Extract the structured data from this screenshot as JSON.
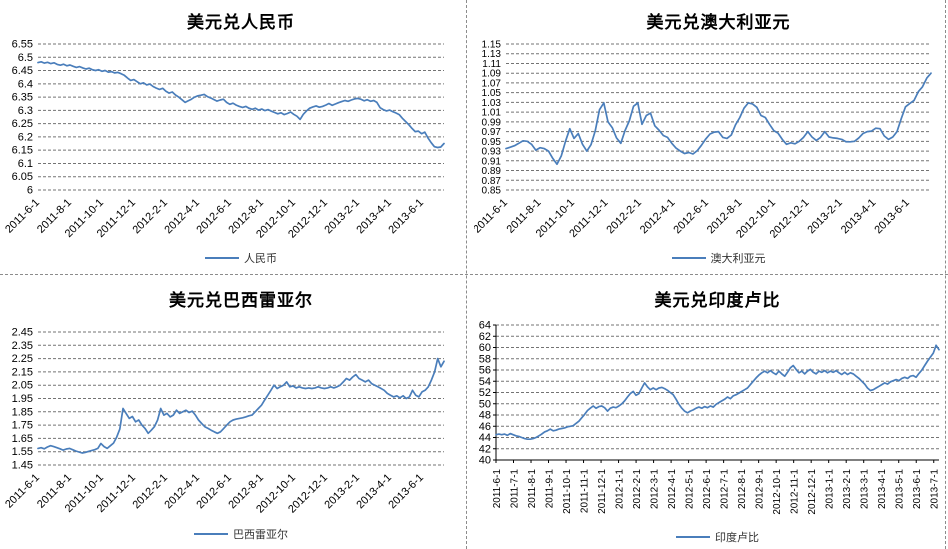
{
  "colors": {
    "series_line": "#4a7ebb",
    "grid": "#737373",
    "axis": "#000000",
    "divider": "#8c8c8c",
    "title_text": "#000000",
    "legend_text": "#333333"
  },
  "chart_data": [
    {
      "type": "line",
      "title": "美元兑人民币",
      "legend": "人民币",
      "ylim": [
        6,
        6.55
      ],
      "y_ticks": [
        "6.55",
        "6.5",
        "6.45",
        "6.4",
        "6.35",
        "6.3",
        "6.25",
        "6.2",
        "6.15",
        "6.1",
        "6.05",
        "6"
      ],
      "x_ticks": [
        "2011-6-1",
        "2011-8-1",
        "2011-10-1",
        "2011-12-1",
        "2012-2-1",
        "2012-4-1",
        "2012-6-1",
        "2012-8-1",
        "2012-10-1",
        "2012-12-1",
        "2013-2-1",
        "2013-4-1",
        "2013-6-1"
      ],
      "values": [
        6.48,
        6.483,
        6.478,
        6.481,
        6.476,
        6.479,
        6.473,
        6.47,
        6.474,
        6.468,
        6.471,
        6.466,
        6.462,
        6.465,
        6.46,
        6.456,
        6.459,
        6.453,
        6.45,
        6.453,
        6.447,
        6.45,
        6.444,
        6.446,
        6.441,
        6.443,
        6.438,
        6.432,
        6.422,
        6.413,
        6.416,
        6.408,
        6.4,
        6.404,
        6.396,
        6.399,
        6.39,
        6.384,
        6.379,
        6.383,
        6.372,
        6.365,
        6.369,
        6.358,
        6.35,
        6.34,
        6.33,
        6.336,
        6.342,
        6.35,
        6.355,
        6.357,
        6.36,
        6.352,
        6.347,
        6.341,
        6.335,
        6.339,
        6.342,
        6.33,
        6.323,
        6.327,
        6.32,
        6.315,
        6.311,
        6.315,
        6.308,
        6.304,
        6.308,
        6.301,
        6.305,
        6.299,
        6.303,
        6.297,
        6.292,
        6.287,
        6.291,
        6.284,
        6.288,
        6.294,
        6.285,
        6.278,
        6.266,
        6.285,
        6.298,
        6.308,
        6.313,
        6.317,
        6.312,
        6.315,
        6.32,
        6.326,
        6.319,
        6.324,
        6.329,
        6.333,
        6.337,
        6.334,
        6.339,
        6.343,
        6.345,
        6.342,
        6.336,
        6.34,
        6.334,
        6.337,
        6.33,
        6.31,
        6.303,
        6.298,
        6.301,
        6.295,
        6.29,
        6.284,
        6.27,
        6.258,
        6.246,
        6.232,
        6.22,
        6.222,
        6.212,
        6.218,
        6.196,
        6.178,
        6.163,
        6.16,
        6.162,
        6.175
      ]
    },
    {
      "type": "line",
      "title": "美元兑澳大利亚元",
      "legend": "澳大利亚元",
      "ylim": [
        0.85,
        1.15
      ],
      "y_ticks": [
        "1.15",
        "1.13",
        "1.11",
        "1.09",
        "1.07",
        "1.05",
        "1.03",
        "1.01",
        "0.99",
        "0.97",
        "0.95",
        "0.93",
        "0.91",
        "0.89",
        "0.87",
        "0.85"
      ],
      "x_ticks": [
        "2011-6-1",
        "2011-8-1",
        "2011-10-1",
        "2011-12-1",
        "2012-2-1",
        "2012-4-1",
        "2012-6-1",
        "2012-8-1",
        "2012-10-1",
        "2012-12-1",
        "2013-2-1",
        "2013-4-1",
        "2013-6-1"
      ],
      "values": [
        0.935,
        0.938,
        0.941,
        0.946,
        0.951,
        0.95,
        0.944,
        0.932,
        0.937,
        0.935,
        0.93,
        0.915,
        0.903,
        0.92,
        0.95,
        0.976,
        0.956,
        0.966,
        0.944,
        0.93,
        0.943,
        0.972,
        1.015,
        1.029,
        0.99,
        0.978,
        0.957,
        0.946,
        0.972,
        0.992,
        1.022,
        1.029,
        0.985,
        1.003,
        1.008,
        0.982,
        0.973,
        0.962,
        0.958,
        0.946,
        0.936,
        0.93,
        0.925,
        0.927,
        0.924,
        0.931,
        0.942,
        0.955,
        0.965,
        0.969,
        0.97,
        0.958,
        0.956,
        0.963,
        0.984,
        0.999,
        1.018,
        1.029,
        1.027,
        1.02,
        1.003,
        0.999,
        0.985,
        0.972,
        0.967,
        0.954,
        0.944,
        0.947,
        0.945,
        0.95,
        0.958,
        0.97,
        0.959,
        0.952,
        0.958,
        0.97,
        0.959,
        0.957,
        0.956,
        0.954,
        0.949,
        0.949,
        0.95,
        0.957,
        0.966,
        0.97,
        0.971,
        0.977,
        0.976,
        0.961,
        0.954,
        0.959,
        0.97,
        0.997,
        1.021,
        1.028,
        1.034,
        1.052,
        1.062,
        1.08,
        1.09
      ]
    },
    {
      "type": "line",
      "title": "美元兑巴西雷亚尔",
      "legend": "巴西雷亚尔",
      "ylim": [
        1.45,
        2.45
      ],
      "y_ticks": [
        "2.45",
        "2.35",
        "2.25",
        "2.15",
        "2.05",
        "1.95",
        "1.85",
        "1.75",
        "1.65",
        "1.55",
        "1.45"
      ],
      "x_ticks": [
        "2011-6-1",
        "2011-8-1",
        "2011-10-1",
        "2011-12-1",
        "2012-2-1",
        "2012-4-1",
        "2012-6-1",
        "2012-8-1",
        "2012-10-1",
        "2012-12-1",
        "2013-2-1",
        "2013-4-1",
        "2013-6-1"
      ],
      "values": [
        1.575,
        1.58,
        1.572,
        1.585,
        1.595,
        1.588,
        1.58,
        1.572,
        1.562,
        1.57,
        1.575,
        1.565,
        1.555,
        1.548,
        1.54,
        1.545,
        1.552,
        1.558,
        1.565,
        1.575,
        1.612,
        1.588,
        1.575,
        1.595,
        1.615,
        1.66,
        1.72,
        1.875,
        1.838,
        1.8,
        1.815,
        1.775,
        1.788,
        1.75,
        1.725,
        1.688,
        1.712,
        1.738,
        1.788,
        1.875,
        1.825,
        1.838,
        1.812,
        1.825,
        1.862,
        1.838,
        1.85,
        1.862,
        1.845,
        1.855,
        1.825,
        1.788,
        1.762,
        1.738,
        1.725,
        1.712,
        1.7,
        1.688,
        1.7,
        1.725,
        1.75,
        1.775,
        1.788,
        1.795,
        1.8,
        1.805,
        1.812,
        1.82,
        1.825,
        1.85,
        1.875,
        1.9,
        1.938,
        1.975,
        2.012,
        2.05,
        2.025,
        2.038,
        2.05,
        2.075,
        2.038,
        2.045,
        2.03,
        2.038,
        2.03,
        2.025,
        2.03,
        2.025,
        2.03,
        2.038,
        2.03,
        2.025,
        2.03,
        2.038,
        2.03,
        2.038,
        2.05,
        2.075,
        2.1,
        2.088,
        2.112,
        2.13,
        2.1,
        2.088,
        2.075,
        2.088,
        2.062,
        2.05,
        2.038,
        2.025,
        2.012,
        1.988,
        1.975,
        1.962,
        1.97,
        1.955,
        1.97,
        1.95,
        1.962,
        2.012,
        1.975,
        1.962,
        2.0,
        2.012,
        2.038,
        2.088,
        2.15,
        2.25,
        2.188,
        2.23
      ]
    },
    {
      "type": "line",
      "title": "美元兑印度卢比",
      "legend": "印度卢比",
      "ylim": [
        40,
        64
      ],
      "y_ticks": [
        "64",
        "62",
        "60",
        "58",
        "56",
        "54",
        "52",
        "50",
        "48",
        "46",
        "44",
        "42",
        "40"
      ],
      "x_ticks": [
        "2011-6-1",
        "2011-7-1",
        "2011-8-1",
        "2011-9-1",
        "2011-10-1",
        "2011-11-1",
        "2011-12-1",
        "2012-1-1",
        "2012-2-1",
        "2012-3-1",
        "2012-4-1",
        "2012-5-1",
        "2012-6-1",
        "2012-7-1",
        "2012-8-1",
        "2012-9-1",
        "2012-10-1",
        "2012-11-1",
        "2012-12-1",
        "2013-1-1",
        "2013-2-1",
        "2013-3-1",
        "2013-4-1",
        "2013-5-1",
        "2013-6-1",
        "2013-7-1"
      ],
      "values": [
        44.5,
        44.6,
        44.5,
        44.6,
        44.4,
        44.7,
        44.5,
        44.3,
        44.2,
        44.0,
        43.8,
        43.7,
        43.7,
        43.8,
        44.0,
        44.3,
        44.6,
        45.0,
        45.2,
        45.5,
        45.2,
        45.3,
        45.5,
        45.6,
        45.7,
        45.9,
        46.0,
        46.1,
        46.5,
        46.9,
        47.5,
        48.1,
        48.8,
        49.2,
        49.6,
        49.2,
        49.5,
        49.6,
        49.3,
        48.7,
        49.2,
        49.4,
        49.3,
        49.6,
        50.0,
        50.5,
        51.2,
        51.8,
        52.2,
        51.5,
        51.8,
        52.8,
        53.7,
        53.0,
        52.5,
        52.8,
        52.5,
        52.8,
        52.9,
        52.7,
        52.4,
        52.0,
        51.6,
        50.8,
        49.9,
        49.2,
        48.7,
        48.4,
        48.7,
        48.9,
        49.2,
        49.4,
        49.2,
        49.5,
        49.3,
        49.6,
        49.4,
        49.9,
        50.2,
        50.5,
        50.8,
        51.2,
        50.9,
        51.4,
        51.6,
        51.9,
        52.2,
        52.5,
        52.8,
        53.4,
        54.0,
        54.6,
        55.1,
        55.5,
        55.8,
        55.5,
        55.9,
        55.5,
        55.2,
        55.8,
        55.3,
        54.9,
        55.6,
        56.4,
        56.8,
        56.1,
        55.5,
        55.8,
        55.3,
        55.8,
        56.1,
        55.6,
        55.3,
        55.8,
        55.6,
        55.9,
        55.5,
        55.8,
        55.6,
        55.9,
        55.5,
        55.2,
        55.6,
        55.2,
        55.5,
        55.3,
        54.9,
        54.5,
        54.0,
        53.5,
        52.8,
        52.35,
        52.5,
        52.8,
        53.1,
        53.4,
        53.7,
        53.5,
        53.9,
        54.1,
        54.3,
        54.1,
        54.5,
        54.7,
        54.5,
        54.9,
        55.0,
        54.7,
        55.4,
        56.0,
        56.8,
        57.6,
        58.3,
        59.0,
        60.4,
        59.6
      ]
    }
  ]
}
